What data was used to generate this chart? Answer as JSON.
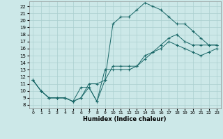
{
  "xlabel": "Humidex (Indice chaleur)",
  "background_color": "#cce8e8",
  "grid_color": "#aacfcf",
  "line_color": "#1a6868",
  "xlim": [
    -0.5,
    23.5
  ],
  "ylim": [
    7.5,
    22.7
  ],
  "xticks": [
    0,
    1,
    2,
    3,
    4,
    5,
    6,
    7,
    8,
    9,
    10,
    11,
    12,
    13,
    14,
    15,
    16,
    17,
    18,
    19,
    20,
    21,
    22,
    23
  ],
  "yticks": [
    8,
    9,
    10,
    11,
    12,
    13,
    14,
    15,
    16,
    17,
    18,
    19,
    20,
    21,
    22
  ],
  "line1_x": [
    0,
    1,
    2,
    3,
    4,
    5,
    6,
    7,
    8,
    9,
    10,
    11,
    12,
    13,
    14,
    15,
    16,
    17,
    18,
    19,
    20,
    21,
    22,
    23
  ],
  "line1_y": [
    11.5,
    10.0,
    9.0,
    9.0,
    9.0,
    8.5,
    9.0,
    10.5,
    8.5,
    11.5,
    19.5,
    20.5,
    20.5,
    21.5,
    22.5,
    22.0,
    21.5,
    20.5,
    19.5,
    19.5,
    18.5,
    17.5,
    16.5,
    16.5
  ],
  "line2_x": [
    0,
    1,
    2,
    3,
    4,
    5,
    6,
    7,
    8,
    9,
    10,
    11,
    12,
    13,
    14,
    15,
    16,
    17,
    18,
    19,
    20,
    21,
    22,
    23
  ],
  "line2_y": [
    11.5,
    10.0,
    9.0,
    9.0,
    9.0,
    8.5,
    9.0,
    11.0,
    11.0,
    11.5,
    13.5,
    13.5,
    13.5,
    13.5,
    14.5,
    15.5,
    16.5,
    17.5,
    18.0,
    17.0,
    16.5,
    16.5,
    16.5,
    16.5
  ],
  "line3_x": [
    0,
    1,
    2,
    3,
    4,
    5,
    6,
    7,
    8,
    9,
    10,
    11,
    12,
    13,
    14,
    15,
    16,
    17,
    18,
    19,
    20,
    21,
    22,
    23
  ],
  "line3_y": [
    11.5,
    10.0,
    9.0,
    9.0,
    9.0,
    8.5,
    10.5,
    10.5,
    8.5,
    13.0,
    13.0,
    13.0,
    13.0,
    13.5,
    15.0,
    15.5,
    16.0,
    17.0,
    16.5,
    16.0,
    15.5,
    15.0,
    15.5,
    16.0
  ]
}
